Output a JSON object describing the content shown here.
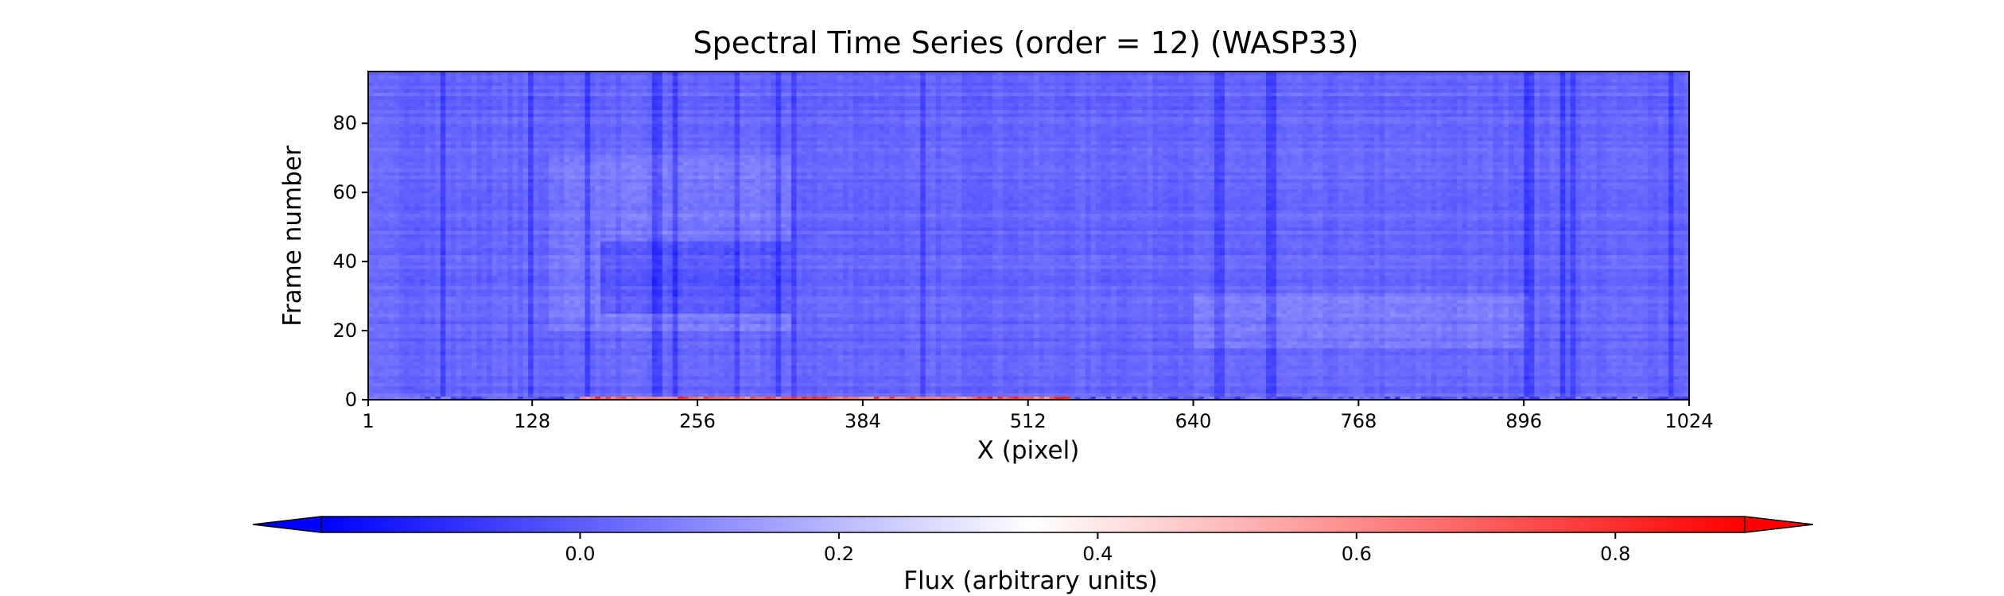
{
  "chart_data": {
    "type": "heatmap",
    "title": "Spectral Time Series (order = 12) (WASP33)",
    "xlabel": "X (pixel)",
    "ylabel": "Frame number",
    "xlim": [
      1,
      1024
    ],
    "ylim": [
      0,
      95
    ],
    "xticks": [
      1,
      128,
      256,
      384,
      512,
      640,
      768,
      896,
      1024
    ],
    "yticks": [
      0,
      20,
      40,
      60,
      80
    ],
    "frame_count": 95,
    "colormap": "bwr",
    "colorbar": {
      "label": "Flux (arbitrary units)",
      "orientation": "horizontal",
      "placement": "bottom",
      "extend": "both",
      "vmin": -0.2,
      "vmax": 0.9,
      "ticks": [
        0.0,
        0.2,
        0.4,
        0.6,
        0.8
      ],
      "tick_labels": [
        "0.0",
        "0.2",
        "0.4",
        "0.6",
        "0.8"
      ],
      "colors": {
        "low": "#0000ff",
        "mid": "#ffffff",
        "high": "#ff0000"
      }
    },
    "grid": false,
    "background_flux": 0.02,
    "features": {
      "bright_bands_x": [
        [
          140,
          330
        ],
        [
          640,
          900
        ]
      ],
      "bright_bands_y": [
        [
          20,
          70
        ],
        [
          15,
          30
        ]
      ],
      "dark_band": {
        "x": [
          180,
          330
        ],
        "y": [
          25,
          45
        ]
      },
      "absorption_columns": [
        60,
        128,
        170,
        225,
        240,
        288,
        320,
        330,
        430,
        660,
        700,
        900,
        925,
        935,
        1010
      ],
      "frame0_hot_range": [
        165,
        545
      ],
      "frame0_peak_flux": 0.85
    }
  }
}
